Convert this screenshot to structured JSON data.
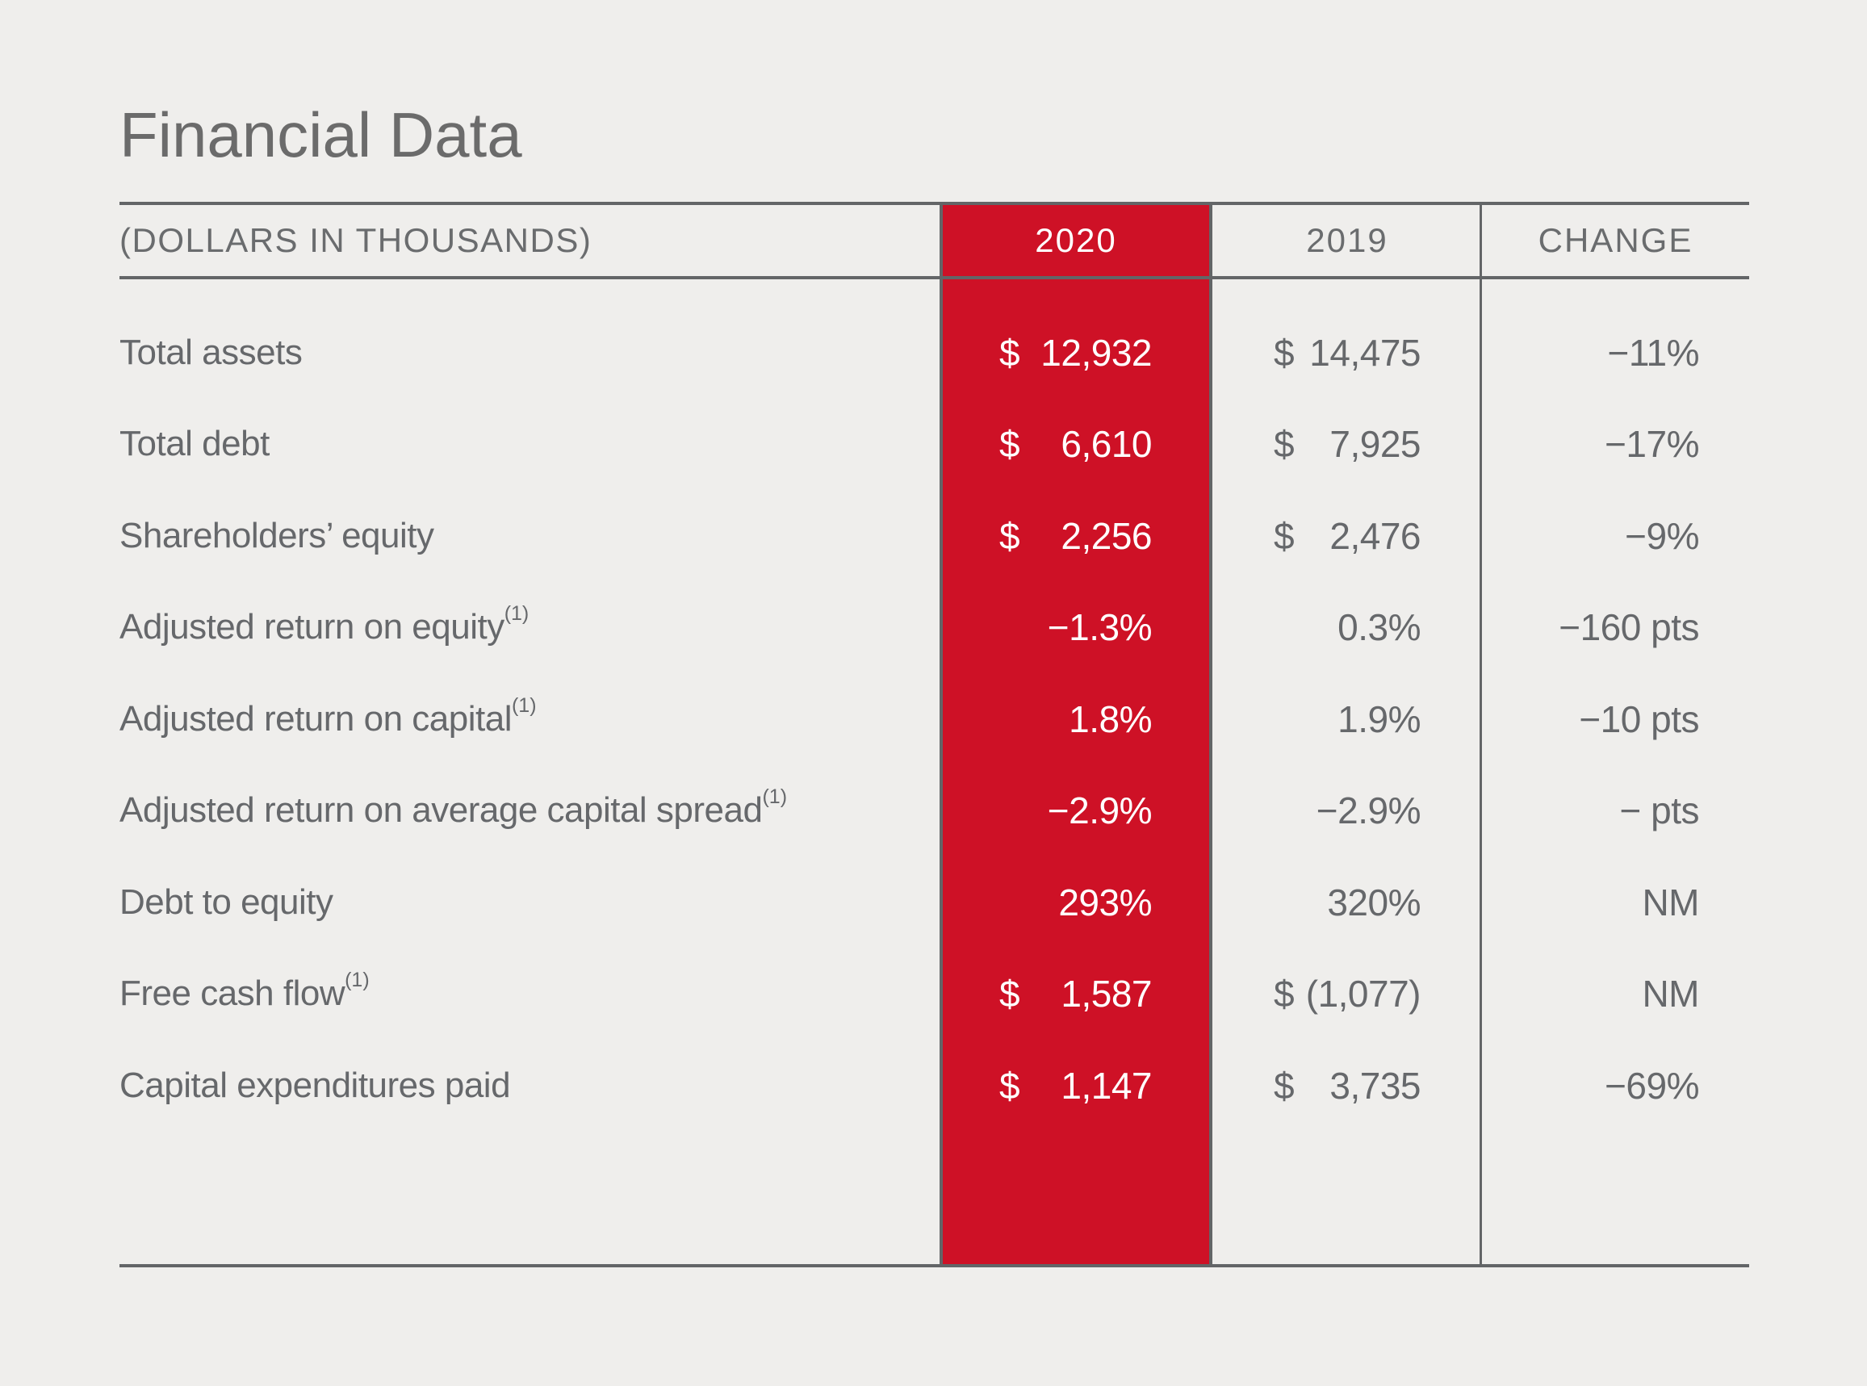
{
  "title": "Financial Data",
  "colors": {
    "background": "#efeeec",
    "accent_red": "#ce1126",
    "line_gray": "#636567",
    "text_gray": "#6a6c6e",
    "highlight_text": "#ffffff"
  },
  "table": {
    "unit_label": "(DOLLARS IN THOUSANDS)",
    "columns": [
      "2020",
      "2019",
      "CHANGE"
    ],
    "rows": [
      {
        "label": "Total assets",
        "footnote": "",
        "c2020": {
          "cur": "$",
          "val": "12,932"
        },
        "c2019": {
          "cur": "$",
          "val": "14,475"
        },
        "change": "−11%"
      },
      {
        "label": "Total debt",
        "footnote": "",
        "c2020": {
          "cur": "$",
          "val": "6,610"
        },
        "c2019": {
          "cur": "$",
          "val": "7,925"
        },
        "change": "−17%"
      },
      {
        "label": "Shareholders’ equity",
        "footnote": "",
        "c2020": {
          "cur": "$",
          "val": "2,256"
        },
        "c2019": {
          "cur": "$",
          "val": "2,476"
        },
        "change": "−9%"
      },
      {
        "label": "Adjusted return on equity",
        "footnote": "(1)",
        "c2020": {
          "cur": "",
          "val": "−1.3%"
        },
        "c2019": {
          "cur": "",
          "val": "0.3%"
        },
        "change": "−160 pts"
      },
      {
        "label": "Adjusted return on capital",
        "footnote": "(1)",
        "c2020": {
          "cur": "",
          "val": "1.8%"
        },
        "c2019": {
          "cur": "",
          "val": "1.9%"
        },
        "change": "−10 pts"
      },
      {
        "label": "Adjusted return on average capital spread",
        "footnote": "(1)",
        "c2020": {
          "cur": "",
          "val": "−2.9%"
        },
        "c2019": {
          "cur": "",
          "val": "−2.9%"
        },
        "change": "− pts"
      },
      {
        "label": "Debt to equity",
        "footnote": "",
        "c2020": {
          "cur": "",
          "val": "293%"
        },
        "c2019": {
          "cur": "",
          "val": "320%"
        },
        "change": "NM"
      },
      {
        "label": "Free cash flow",
        "footnote": "(1)",
        "c2020": {
          "cur": "$",
          "val": "1,587"
        },
        "c2019": {
          "cur": "$",
          "val": "(1,077)"
        },
        "change": "NM"
      },
      {
        "label": "Capital expenditures paid",
        "footnote": "",
        "c2020": {
          "cur": "$",
          "val": "1,147"
        },
        "c2019": {
          "cur": "$",
          "val": "3,735"
        },
        "change": "−69%"
      }
    ]
  }
}
